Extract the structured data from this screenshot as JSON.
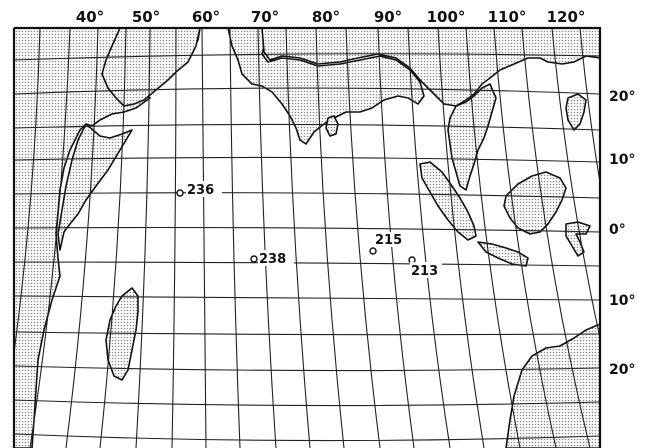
{
  "longitude_labels": [
    "40°",
    "50°",
    "60°",
    "70°",
    "80°",
    "90°",
    "100°",
    "110°",
    "120°"
  ],
  "latitude_labels": [
    "20°",
    "10°",
    "0°",
    "10°",
    "20°"
  ],
  "sites": [
    {
      "label": "236"
    },
    {
      "label": "238"
    },
    {
      "label": "215"
    },
    {
      "label": "213"
    }
  ],
  "colors": {
    "ink": "#111111",
    "stipple": "#9a9a9a",
    "paper": "#ffffff"
  }
}
